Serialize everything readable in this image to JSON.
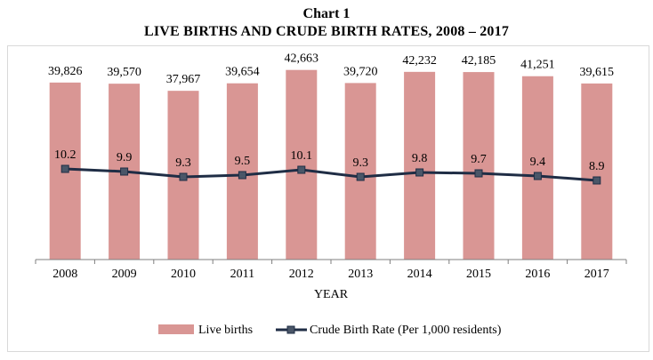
{
  "chart_label": "Chart 1",
  "chart_title": "LIVE BIRTHS AND CRUDE BIRTH RATES, 2008 – 2017",
  "colors": {
    "bar_fill": "#d99694",
    "line_color": "#1f2d45",
    "marker_fill": "#4a5668",
    "axis": "#7f7f7f",
    "frame": "#d9d9d9"
  },
  "chart_data": {
    "type": "bar",
    "title": "LIVE BIRTHS AND CRUDE BIRTH RATES, 2008 – 2017",
    "xlabel": "YEAR",
    "ylabel": "",
    "categories": [
      "2008",
      "2009",
      "2010",
      "2011",
      "2012",
      "2013",
      "2014",
      "2015",
      "2016",
      "2017"
    ],
    "series": [
      {
        "name": "Live births",
        "type": "bar",
        "values": [
          39826,
          39570,
          37967,
          39654,
          42663,
          39720,
          42232,
          42185,
          41251,
          39615
        ],
        "labels": [
          "39,826",
          "39,570",
          "37,967",
          "39,654",
          "42,663",
          "39,720",
          "42,232",
          "42,185",
          "41,251",
          "39,615"
        ]
      },
      {
        "name": "Crude Birth Rate (Per 1,000 residents)",
        "type": "line",
        "values": [
          10.2,
          9.9,
          9.3,
          9.5,
          10.1,
          9.3,
          9.8,
          9.7,
          9.4,
          8.9
        ],
        "labels": [
          "10.2",
          "9.9",
          "9.3",
          "9.5",
          "10.1",
          "9.3",
          "9.8",
          "9.7",
          "9.4",
          "8.9"
        ]
      }
    ],
    "ylim_bars": [
      0,
      50000
    ],
    "ylim_line": [
      0,
      25
    ],
    "grid": false,
    "legend_position": "bottom"
  }
}
